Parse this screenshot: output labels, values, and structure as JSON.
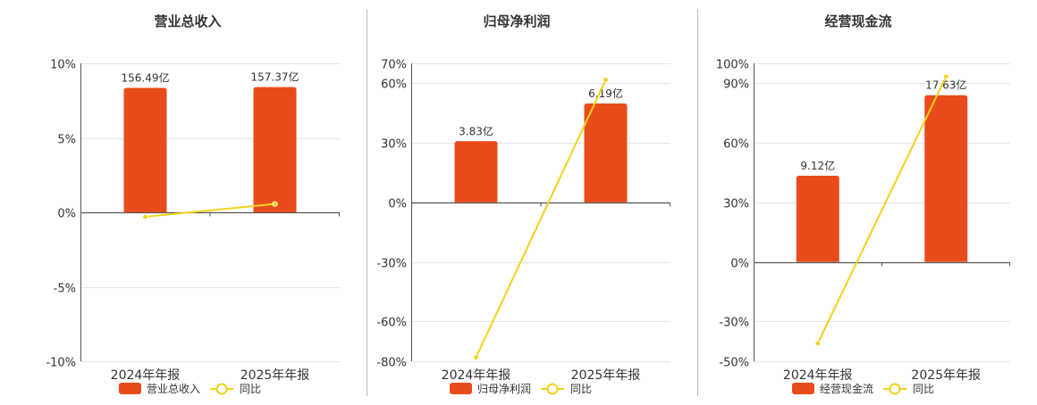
{
  "colors": {
    "bar": "#e84c1a",
    "line": "#f2d21c",
    "grid": "#e6e6e6",
    "axis": "#555555",
    "divider": "#bbbbbb"
  },
  "chart_data": [
    {
      "type": "bar",
      "title": "营业总收入",
      "categories": [
        "2024年年报",
        "2025年年报"
      ],
      "series": [
        {
          "name": "营业总收入",
          "type": "bar",
          "axis": "amount",
          "values": [
            156.49,
            157.37
          ],
          "labels": [
            "156.49亿",
            "157.37亿"
          ]
        },
        {
          "name": "同比",
          "type": "line",
          "axis": "percent",
          "values": [
            -0.3,
            0.56
          ]
        }
      ],
      "ylim_percent": [
        -10,
        10
      ],
      "yticks": [
        10,
        5,
        0,
        -5,
        -10
      ],
      "ytick_labels": [
        "10%",
        "5%",
        "0%",
        "-5%",
        "-10%"
      ],
      "ylim_amount": [
        -187.3,
        187.3
      ],
      "legend": "bottom-center",
      "grid": true
    },
    {
      "type": "bar",
      "title": "归母净利润",
      "categories": [
        "2024年年报",
        "2025年年报"
      ],
      "series": [
        {
          "name": "归母净利润",
          "type": "bar",
          "axis": "amount",
          "values": [
            3.83,
            6.19
          ],
          "labels": [
            "3.83亿",
            "6.19亿"
          ]
        },
        {
          "name": "同比",
          "type": "line",
          "axis": "percent",
          "values": [
            -78.0,
            61.6
          ]
        }
      ],
      "ylim_percent": [
        -80,
        70
      ],
      "yticks": [
        70,
        60,
        30,
        0,
        -30,
        -60,
        -80
      ],
      "ytick_labels": [
        "70%",
        "60%",
        "30%",
        "0%",
        "-30%",
        "-60%",
        "-80%"
      ],
      "ylim_amount": [
        -9.94,
        8.7
      ],
      "legend": "bottom-center",
      "grid": true
    },
    {
      "type": "bar",
      "title": "经营现金流",
      "categories": [
        "2024年年报",
        "2025年年报"
      ],
      "series": [
        {
          "name": "经营现金流",
          "type": "bar",
          "axis": "amount",
          "values": [
            9.12,
            17.63
          ],
          "labels": [
            "9.12亿",
            "17.63亿"
          ]
        },
        {
          "name": "同比",
          "type": "line",
          "axis": "percent",
          "values": [
            -41.0,
            93.3
          ]
        }
      ],
      "ylim_percent": [
        -50,
        100
      ],
      "yticks": [
        100,
        90,
        60,
        30,
        0,
        -30,
        -50
      ],
      "ytick_labels": [
        "100%",
        "90%",
        "60%",
        "30%",
        "0%",
        "-30%",
        "-50%"
      ],
      "ylim_amount": [
        -10.5,
        21.0
      ],
      "legend": "bottom-center",
      "grid": true
    }
  ]
}
